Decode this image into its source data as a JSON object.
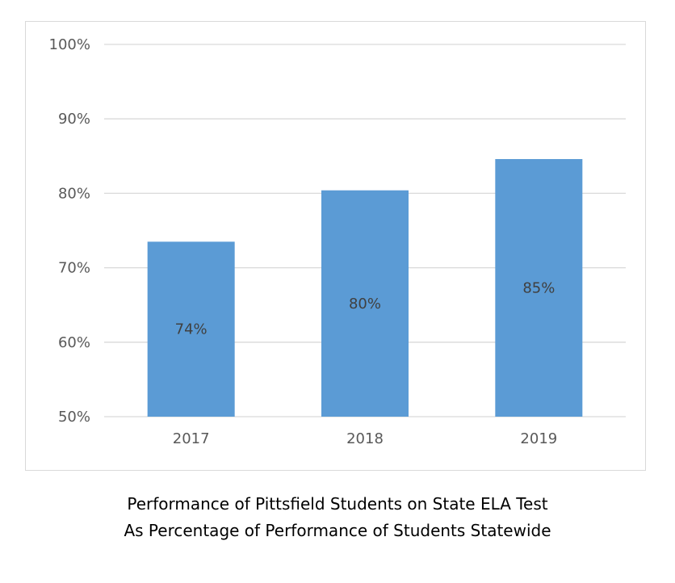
{
  "chart_data": {
    "type": "bar",
    "categories": [
      "2017",
      "2018",
      "2019"
    ],
    "values": [
      73.5,
      80.4,
      84.6
    ],
    "data_labels": [
      "74%",
      "80%",
      "85%"
    ],
    "ylim": [
      50,
      100
    ],
    "yticks": [
      50,
      60,
      70,
      80,
      90,
      100
    ],
    "ytick_labels": [
      "50%",
      "60%",
      "70%",
      "80%",
      "90%",
      "100%"
    ],
    "grid": true,
    "legend": "none",
    "bar_color": "#5b9bd5",
    "grid_color": "#d9d9d9",
    "tick_label_color": "#595959",
    "data_label_color": "#404040",
    "caption": [
      "Performance of Pittsfield Students on State ELA Test",
      "As Percentage of Performance of Students Statewide"
    ]
  }
}
